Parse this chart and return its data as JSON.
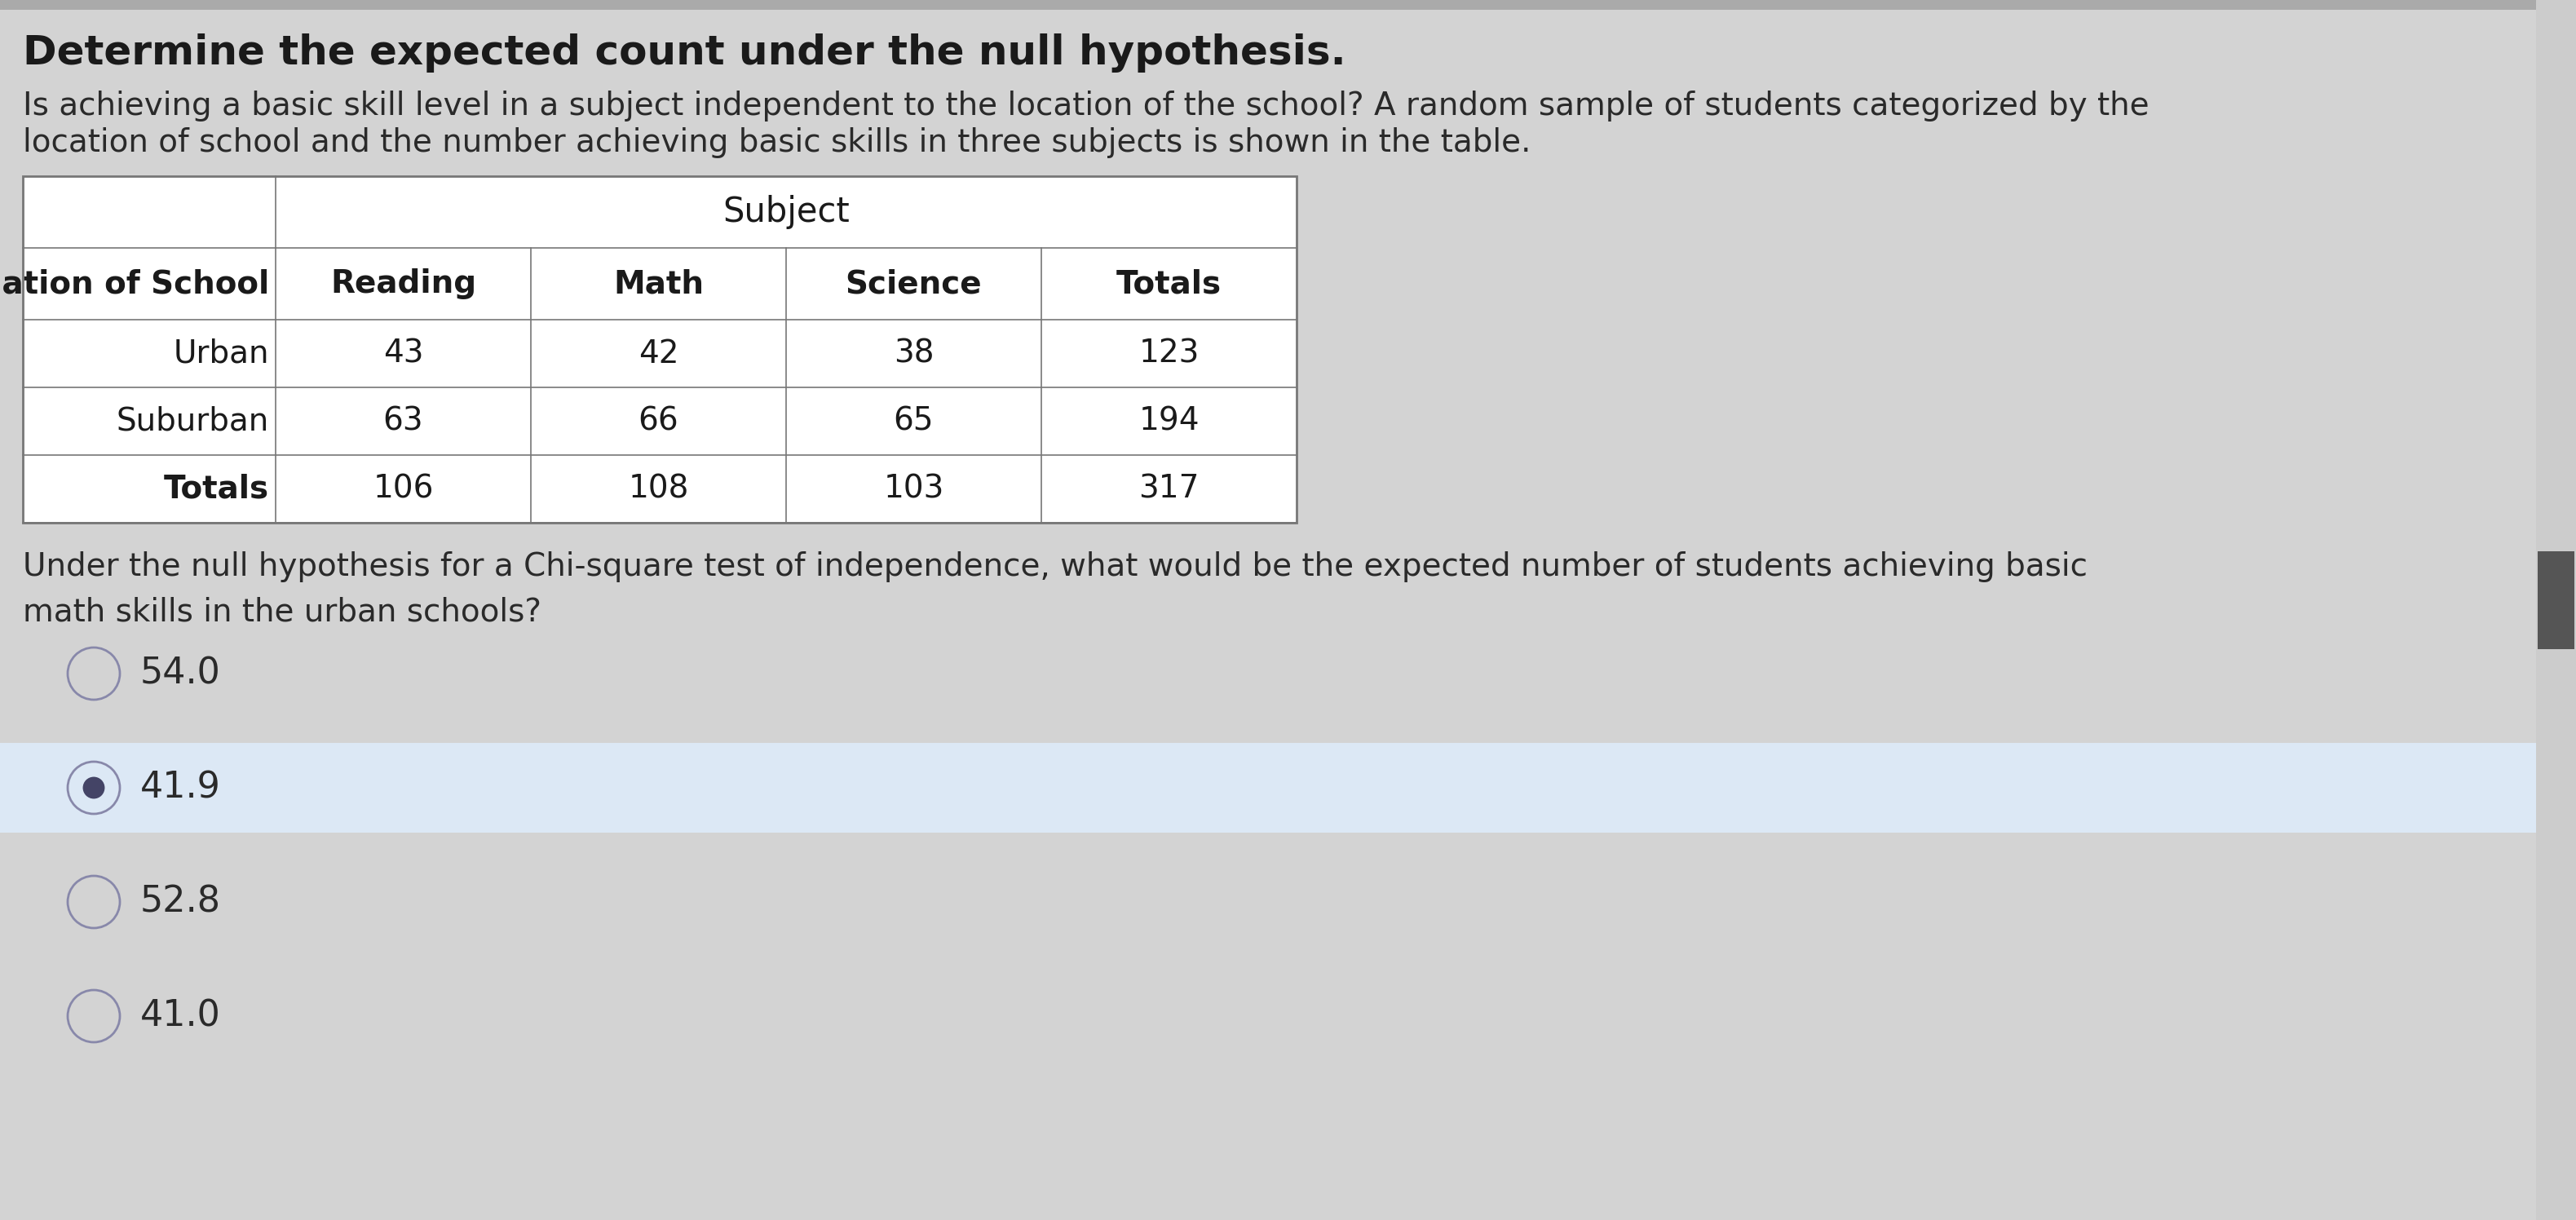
{
  "title": "Determine the expected count under the null hypothesis.",
  "paragraph_line1": "Is achieving a basic skill level in a subject independent to the location of the school? A random sample of students categorized by the",
  "paragraph_line2": "location of school and the number achieving basic skills in three subjects is shown in the table.",
  "question_line1": "Under the null hypothesis for a Chi-square test of independence, what would be the expected number of students achieving basic",
  "question_line2": "math skills in the urban schools?",
  "table": {
    "subject_header": "Subject",
    "col_headers": [
      "Location of School",
      "Reading",
      "Math",
      "Science",
      "Totals"
    ],
    "rows": [
      [
        "Urban",
        "43",
        "42",
        "38",
        "123"
      ],
      [
        "Suburban",
        "63",
        "66",
        "65",
        "194"
      ],
      [
        "Totals",
        "106",
        "108",
        "103",
        "317"
      ]
    ]
  },
  "options": [
    {
      "label": "54.0",
      "selected": false
    },
    {
      "label": "41.9",
      "selected": true
    },
    {
      "label": "52.8",
      "selected": false
    },
    {
      "label": "41.0",
      "selected": false
    }
  ],
  "bg_color": "#d3d3d3",
  "white": "#ffffff",
  "table_border_color": "#777777",
  "title_color": "#1a1a1a",
  "text_color": "#2a2a2a",
  "circle_border_color": "#8888aa",
  "selected_dot_color": "#444466",
  "scrollbar_color": "#555555",
  "highlight_row_color": "#dce8f5"
}
